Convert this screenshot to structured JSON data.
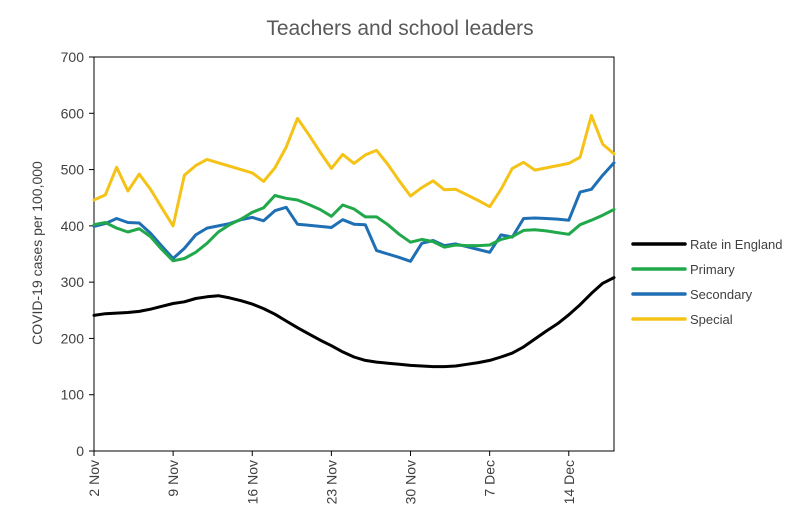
{
  "chart_data": {
    "type": "line",
    "title": "Teachers and school leaders",
    "xlabel": "",
    "ylabel": "COVID-19 cases per 100,000",
    "ylim": [
      0,
      700
    ],
    "y_ticks": [
      0,
      100,
      200,
      300,
      400,
      500,
      600,
      700
    ],
    "x_domain": [
      "2 Nov",
      "18 Dec"
    ],
    "x_ticks": [
      "2 Nov",
      "9 Nov",
      "16 Nov",
      "23 Nov",
      "30 Nov",
      "7 Dec",
      "14 Dec"
    ],
    "grid": false,
    "legend_position": "right",
    "series": [
      {
        "name": "Rate in England",
        "color": "#000000",
        "points": [
          [
            "2 Nov",
            241
          ],
          [
            "3 Nov",
            244
          ],
          [
            "4 Nov",
            245
          ],
          [
            "5 Nov",
            246
          ],
          [
            "6 Nov",
            248
          ],
          [
            "7 Nov",
            252
          ],
          [
            "8 Nov",
            257
          ],
          [
            "9 Nov",
            262
          ],
          [
            "10 Nov",
            265
          ],
          [
            "11 Nov",
            271
          ],
          [
            "12 Nov",
            274
          ],
          [
            "13 Nov",
            276
          ],
          [
            "14 Nov",
            272
          ],
          [
            "15 Nov",
            267
          ],
          [
            "16 Nov",
            261
          ],
          [
            "17 Nov",
            253
          ],
          [
            "18 Nov",
            243
          ],
          [
            "19 Nov",
            231
          ],
          [
            "20 Nov",
            219
          ],
          [
            "21 Nov",
            208
          ],
          [
            "22 Nov",
            197
          ],
          [
            "23 Nov",
            187
          ],
          [
            "24 Nov",
            176
          ],
          [
            "25 Nov",
            167
          ],
          [
            "26 Nov",
            161
          ],
          [
            "27 Nov",
            158
          ],
          [
            "28 Nov",
            156
          ],
          [
            "29 Nov",
            154
          ],
          [
            "30 Nov",
            152
          ],
          [
            "1 Dec",
            151
          ],
          [
            "2 Dec",
            150
          ],
          [
            "3 Dec",
            150
          ],
          [
            "4 Dec",
            151
          ],
          [
            "5 Dec",
            154
          ],
          [
            "6 Dec",
            157
          ],
          [
            "7 Dec",
            161
          ],
          [
            "8 Dec",
            167
          ],
          [
            "9 Dec",
            174
          ],
          [
            "10 Dec",
            185
          ],
          [
            "11 Dec",
            199
          ],
          [
            "12 Dec",
            213
          ],
          [
            "13 Dec",
            226
          ],
          [
            "14 Dec",
            242
          ],
          [
            "15 Dec",
            260
          ],
          [
            "16 Dec",
            280
          ],
          [
            "17 Dec",
            298
          ],
          [
            "18 Dec",
            308
          ]
        ]
      },
      {
        "name": "Primary",
        "color": "#21a84b",
        "points": [
          [
            "2 Nov",
            402
          ],
          [
            "3 Nov",
            406
          ],
          [
            "4 Nov",
            396
          ],
          [
            "5 Nov",
            389
          ],
          [
            "6 Nov",
            395
          ],
          [
            "7 Nov",
            381
          ],
          [
            "8 Nov",
            358
          ],
          [
            "9 Nov",
            338
          ],
          [
            "10 Nov",
            342
          ],
          [
            "11 Nov",
            353
          ],
          [
            "12 Nov",
            369
          ],
          [
            "13 Nov",
            389
          ],
          [
            "14 Nov",
            402
          ],
          [
            "15 Nov",
            412
          ],
          [
            "16 Nov",
            424
          ],
          [
            "17 Nov",
            432
          ],
          [
            "18 Nov",
            454
          ],
          [
            "19 Nov",
            449
          ],
          [
            "20 Nov",
            446
          ],
          [
            "21 Nov",
            438
          ],
          [
            "22 Nov",
            429
          ],
          [
            "23 Nov",
            417
          ],
          [
            "24 Nov",
            437
          ],
          [
            "25 Nov",
            430
          ],
          [
            "26 Nov",
            416
          ],
          [
            "27 Nov",
            416
          ],
          [
            "28 Nov",
            402
          ],
          [
            "29 Nov",
            385
          ],
          [
            "30 Nov",
            371
          ],
          [
            "1 Dec",
            376
          ],
          [
            "2 Dec",
            372
          ],
          [
            "3 Dec",
            362
          ],
          [
            "4 Dec",
            366
          ],
          [
            "5 Dec",
            365
          ],
          [
            "6 Dec",
            365
          ],
          [
            "7 Dec",
            366
          ],
          [
            "8 Dec",
            376
          ],
          [
            "9 Dec",
            381
          ],
          [
            "10 Dec",
            392
          ],
          [
            "11 Dec",
            393
          ],
          [
            "12 Dec",
            391
          ],
          [
            "13 Dec",
            388
          ],
          [
            "14 Dec",
            385
          ],
          [
            "15 Dec",
            402
          ],
          [
            "16 Dec",
            410
          ],
          [
            "17 Dec",
            419
          ],
          [
            "18 Dec",
            429
          ]
        ]
      },
      {
        "name": "Secondary",
        "color": "#1f6fb5",
        "points": [
          [
            "2 Nov",
            399
          ],
          [
            "3 Nov",
            404
          ],
          [
            "4 Nov",
            413
          ],
          [
            "5 Nov",
            406
          ],
          [
            "6 Nov",
            405
          ],
          [
            "7 Nov",
            387
          ],
          [
            "8 Nov",
            364
          ],
          [
            "9 Nov",
            342
          ],
          [
            "10 Nov",
            360
          ],
          [
            "11 Nov",
            384
          ],
          [
            "12 Nov",
            396
          ],
          [
            "13 Nov",
            400
          ],
          [
            "14 Nov",
            404
          ],
          [
            "15 Nov",
            411
          ],
          [
            "16 Nov",
            415
          ],
          [
            "17 Nov",
            409
          ],
          [
            "18 Nov",
            427
          ],
          [
            "19 Nov",
            433
          ],
          [
            "20 Nov",
            403
          ],
          [
            "21 Nov",
            401
          ],
          [
            "22 Nov",
            399
          ],
          [
            "23 Nov",
            397
          ],
          [
            "24 Nov",
            411
          ],
          [
            "25 Nov",
            403
          ],
          [
            "26 Nov",
            402
          ],
          [
            "27 Nov",
            356
          ],
          [
            "28 Nov",
            350
          ],
          [
            "29 Nov",
            344
          ],
          [
            "30 Nov",
            337
          ],
          [
            "1 Dec",
            369
          ],
          [
            "2 Dec",
            374
          ],
          [
            "3 Dec",
            365
          ],
          [
            "4 Dec",
            368
          ],
          [
            "5 Dec",
            363
          ],
          [
            "6 Dec",
            358
          ],
          [
            "7 Dec",
            353
          ],
          [
            "8 Dec",
            384
          ],
          [
            "9 Dec",
            380
          ],
          [
            "10 Dec",
            413
          ],
          [
            "11 Dec",
            414
          ],
          [
            "12 Dec",
            413
          ],
          [
            "13 Dec",
            412
          ],
          [
            "14 Dec",
            410
          ],
          [
            "15 Dec",
            460
          ],
          [
            "16 Dec",
            465
          ],
          [
            "17 Dec",
            490
          ],
          [
            "18 Dec",
            512
          ]
        ]
      },
      {
        "name": "Special",
        "color": "#f5c318",
        "points": [
          [
            "2 Nov",
            446
          ],
          [
            "3 Nov",
            455
          ],
          [
            "4 Nov",
            504
          ],
          [
            "5 Nov",
            462
          ],
          [
            "6 Nov",
            492
          ],
          [
            "7 Nov",
            465
          ],
          [
            "8 Nov",
            432
          ],
          [
            "9 Nov",
            400
          ],
          [
            "10 Nov",
            490
          ],
          [
            "11 Nov",
            507
          ],
          [
            "12 Nov",
            518
          ],
          [
            "13 Nov",
            512
          ],
          [
            "14 Nov",
            506
          ],
          [
            "15 Nov",
            500
          ],
          [
            "16 Nov",
            494
          ],
          [
            "17 Nov",
            479
          ],
          [
            "18 Nov",
            503
          ],
          [
            "19 Nov",
            540
          ],
          [
            "20 Nov",
            591
          ],
          [
            "21 Nov",
            562
          ],
          [
            "22 Nov",
            531
          ],
          [
            "23 Nov",
            502
          ],
          [
            "24 Nov",
            527
          ],
          [
            "25 Nov",
            511
          ],
          [
            "26 Nov",
            526
          ],
          [
            "27 Nov",
            534
          ],
          [
            "28 Nov",
            509
          ],
          [
            "29 Nov",
            480
          ],
          [
            "30 Nov",
            453
          ],
          [
            "1 Dec",
            468
          ],
          [
            "2 Dec",
            480
          ],
          [
            "3 Dec",
            464
          ],
          [
            "4 Dec",
            465
          ],
          [
            "5 Dec",
            455
          ],
          [
            "6 Dec",
            445
          ],
          [
            "7 Dec",
            434
          ],
          [
            "8 Dec",
            465
          ],
          [
            "9 Dec",
            502
          ],
          [
            "10 Dec",
            513
          ],
          [
            "11 Dec",
            499
          ],
          [
            "12 Dec",
            503
          ],
          [
            "13 Dec",
            507
          ],
          [
            "14 Dec",
            511
          ],
          [
            "15 Dec",
            522
          ],
          [
            "16 Dec",
            596
          ],
          [
            "17 Dec",
            545
          ],
          [
            "18 Dec",
            528
          ]
        ]
      }
    ]
  }
}
